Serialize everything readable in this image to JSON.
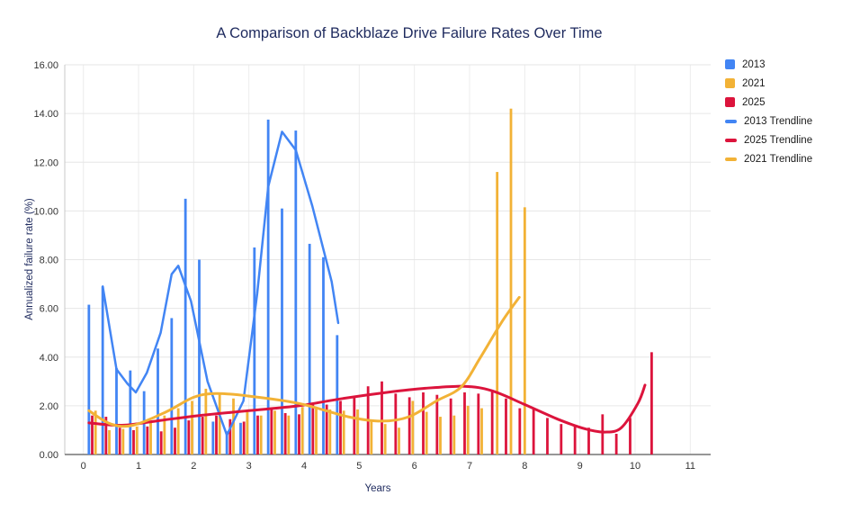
{
  "chart_data": {
    "type": "bar",
    "title": "A Comparison of Backblaze Drive Failure Rates Over Time",
    "xlabel": "Years",
    "ylabel": "Annualized failure rate (%)",
    "xlim": [
      0,
      11
    ],
    "ylim": [
      0,
      16
    ],
    "x_tick_labels": [
      "0",
      "1",
      "2",
      "3",
      "4",
      "5",
      "6",
      "7",
      "8",
      "9",
      "10",
      "11"
    ],
    "y_tick_labels": [
      "0.00",
      "2.00",
      "4.00",
      "6.00",
      "8.00",
      "10.00",
      "12.00",
      "14.00",
      "16.00"
    ],
    "grid": true,
    "legend_position": "right",
    "colors": {
      "blue_2013": "#4285F4",
      "yellow_2021": "#F2B236",
      "red_2025": "#DC143C",
      "title_text": "#1e2a5e",
      "tick_text": "#333333",
      "gridline": "#e6e6e6",
      "axis_line": "#757575"
    },
    "series": [
      {
        "name": "2013",
        "type": "bar",
        "color": "#4285F4",
        "points": [
          [
            0.1,
            6.15
          ],
          [
            0.35,
            6.9
          ],
          [
            0.6,
            3.55
          ],
          [
            0.85,
            3.45
          ],
          [
            1.1,
            2.6
          ],
          [
            1.35,
            4.35
          ],
          [
            1.6,
            5.6
          ],
          [
            1.85,
            10.5
          ],
          [
            2.1,
            8.0
          ],
          [
            2.35,
            1.35
          ],
          [
            2.6,
            0.95
          ],
          [
            2.85,
            1.3
          ],
          [
            3.1,
            8.5
          ],
          [
            3.35,
            13.75
          ],
          [
            3.6,
            10.1
          ],
          [
            3.85,
            13.3
          ],
          [
            4.1,
            8.65
          ],
          [
            4.35,
            8.1
          ],
          [
            4.6,
            4.9
          ]
        ]
      },
      {
        "name": "2021",
        "type": "bar",
        "color": "#F2B236",
        "points": [
          [
            0.22,
            1.8
          ],
          [
            0.47,
            1.0
          ],
          [
            0.72,
            1.05
          ],
          [
            0.97,
            1.15
          ],
          [
            1.22,
            1.35
          ],
          [
            1.47,
            1.6
          ],
          [
            1.72,
            1.9
          ],
          [
            1.97,
            2.2
          ],
          [
            2.22,
            2.7
          ],
          [
            2.47,
            2.55
          ],
          [
            2.72,
            2.3
          ],
          [
            2.97,
            1.75
          ],
          [
            3.22,
            1.6
          ],
          [
            3.47,
            1.8
          ],
          [
            3.72,
            1.6
          ],
          [
            3.97,
            1.95
          ],
          [
            4.22,
            1.9
          ],
          [
            4.47,
            1.85
          ],
          [
            4.72,
            1.8
          ],
          [
            4.97,
            1.85
          ],
          [
            5.22,
            1.4
          ],
          [
            5.47,
            1.25
          ],
          [
            5.72,
            1.1
          ],
          [
            5.97,
            2.2
          ],
          [
            6.22,
            1.75
          ],
          [
            6.47,
            1.55
          ],
          [
            6.72,
            1.6
          ],
          [
            6.97,
            2.0
          ],
          [
            7.22,
            1.9
          ],
          [
            7.5,
            11.6
          ],
          [
            7.75,
            14.2
          ],
          [
            8.0,
            10.15
          ]
        ]
      },
      {
        "name": "2025",
        "type": "bar",
        "color": "#DC143C",
        "points": [
          [
            0.16,
            1.6
          ],
          [
            0.41,
            1.55
          ],
          [
            0.66,
            1.1
          ],
          [
            0.91,
            1.0
          ],
          [
            1.16,
            1.15
          ],
          [
            1.41,
            0.95
          ],
          [
            1.66,
            1.1
          ],
          [
            1.91,
            1.4
          ],
          [
            2.16,
            1.55
          ],
          [
            2.41,
            1.6
          ],
          [
            2.66,
            1.45
          ],
          [
            2.91,
            1.35
          ],
          [
            3.16,
            1.6
          ],
          [
            3.41,
            1.85
          ],
          [
            3.66,
            1.7
          ],
          [
            3.91,
            1.65
          ],
          [
            4.16,
            2.05
          ],
          [
            4.41,
            2.05
          ],
          [
            4.66,
            2.2
          ],
          [
            4.91,
            2.4
          ],
          [
            5.16,
            2.8
          ],
          [
            5.41,
            3.0
          ],
          [
            5.66,
            2.5
          ],
          [
            5.91,
            2.35
          ],
          [
            6.16,
            2.55
          ],
          [
            6.41,
            2.45
          ],
          [
            6.66,
            2.3
          ],
          [
            6.91,
            2.55
          ],
          [
            7.16,
            2.5
          ],
          [
            7.41,
            2.65
          ],
          [
            7.66,
            2.3
          ],
          [
            7.91,
            1.9
          ],
          [
            8.16,
            1.85
          ],
          [
            8.41,
            1.5
          ],
          [
            8.66,
            1.25
          ],
          [
            8.91,
            1.2
          ],
          [
            9.16,
            1.1
          ],
          [
            9.41,
            1.65
          ],
          [
            9.66,
            0.85
          ],
          [
            9.91,
            1.5
          ],
          [
            10.3,
            4.2
          ]
        ]
      },
      {
        "name": "2013 Trendline",
        "type": "line",
        "smooth": false,
        "color": "#4285F4",
        "points": [
          [
            0.35,
            6.9
          ],
          [
            0.6,
            3.5
          ],
          [
            0.8,
            2.9
          ],
          [
            0.95,
            2.55
          ],
          [
            1.15,
            3.35
          ],
          [
            1.4,
            5.0
          ],
          [
            1.6,
            7.4
          ],
          [
            1.72,
            7.75
          ],
          [
            1.95,
            6.3
          ],
          [
            2.25,
            3.0
          ],
          [
            2.6,
            0.8
          ],
          [
            2.9,
            2.2
          ],
          [
            3.15,
            6.6
          ],
          [
            3.35,
            11.0
          ],
          [
            3.6,
            13.25
          ],
          [
            3.85,
            12.5
          ],
          [
            4.15,
            10.2
          ],
          [
            4.5,
            7.1
          ],
          [
            4.62,
            5.4
          ]
        ]
      },
      {
        "name": "2025 Trendline",
        "type": "line",
        "smooth": true,
        "color": "#DC143C",
        "points": [
          [
            0.1,
            1.3
          ],
          [
            0.7,
            1.2
          ],
          [
            1.4,
            1.4
          ],
          [
            2.1,
            1.6
          ],
          [
            3.0,
            1.8
          ],
          [
            3.9,
            2.0
          ],
          [
            4.7,
            2.3
          ],
          [
            5.5,
            2.55
          ],
          [
            6.2,
            2.72
          ],
          [
            6.9,
            2.8
          ],
          [
            7.4,
            2.62
          ],
          [
            8.0,
            2.05
          ],
          [
            8.6,
            1.45
          ],
          [
            9.1,
            1.05
          ],
          [
            9.45,
            0.92
          ],
          [
            9.75,
            1.1
          ],
          [
            10.05,
            2.1
          ],
          [
            10.18,
            2.85
          ]
        ]
      },
      {
        "name": "2021 Trendline",
        "type": "line",
        "smooth": true,
        "color": "#F2B236",
        "points": [
          [
            0.1,
            1.8
          ],
          [
            0.5,
            1.25
          ],
          [
            0.9,
            1.2
          ],
          [
            1.5,
            1.75
          ],
          [
            2.0,
            2.35
          ],
          [
            2.4,
            2.5
          ],
          [
            3.0,
            2.4
          ],
          [
            3.9,
            2.1
          ],
          [
            4.8,
            1.55
          ],
          [
            5.4,
            1.37
          ],
          [
            5.9,
            1.55
          ],
          [
            6.4,
            2.2
          ],
          [
            6.85,
            2.78
          ],
          [
            7.2,
            4.0
          ],
          [
            7.6,
            5.5
          ],
          [
            7.9,
            6.45
          ]
        ]
      }
    ],
    "legend": [
      {
        "label": "2013",
        "color": "#4285F4",
        "shape": "square"
      },
      {
        "label": "2021",
        "color": "#F2B236",
        "shape": "square"
      },
      {
        "label": "2025",
        "color": "#DC143C",
        "shape": "square"
      },
      {
        "label": "2013 Trendline",
        "color": "#4285F4",
        "shape": "dash"
      },
      {
        "label": "2025 Trendline",
        "color": "#DC143C",
        "shape": "dash"
      },
      {
        "label": "2021 Trendline",
        "color": "#F2B236",
        "shape": "dash"
      }
    ]
  }
}
